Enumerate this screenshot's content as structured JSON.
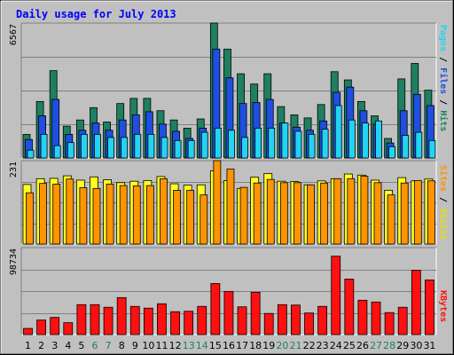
{
  "title": "Daily usage for July 2013",
  "chart_data": [
    {
      "type": "bar",
      "panel": "top",
      "ymax_label": "6567",
      "ylim": [
        0,
        6567
      ],
      "right_label": {
        "pages": "Pages",
        "files": "Files",
        "hits": "Hits",
        "sep": " / "
      },
      "colors": {
        "hits": "#1e8060",
        "files": "#1f4fe0",
        "pages": "#22d4f4"
      },
      "categories": [
        "1",
        "2",
        "3",
        "4",
        "5",
        "6",
        "7",
        "8",
        "9",
        "10",
        "11",
        "12",
        "13",
        "14",
        "15",
        "16",
        "17",
        "18",
        "19",
        "20",
        "21",
        "22",
        "23",
        "24",
        "25",
        "26",
        "27",
        "28",
        "29",
        "30",
        "31"
      ],
      "weekend_days": [
        "6",
        "7",
        "13",
        "14",
        "20",
        "21",
        "27",
        "28"
      ],
      "series": [
        {
          "name": "Hits",
          "values": [
            1150,
            2750,
            4250,
            1550,
            1850,
            2450,
            1750,
            2650,
            2900,
            2900,
            2300,
            1850,
            1450,
            1900,
            6567,
            5300,
            4100,
            3600,
            4100,
            2500,
            2100,
            1950,
            2600,
            4200,
            3800,
            2750,
            2050,
            950,
            3850,
            4600,
            3300
          ]
        },
        {
          "name": "Files",
          "values": [
            900,
            2050,
            2850,
            1150,
            1350,
            1700,
            1350,
            1850,
            2100,
            2250,
            1650,
            1300,
            950,
            1450,
            5300,
            3900,
            2650,
            2700,
            2850,
            1700,
            1500,
            1350,
            1800,
            3200,
            3450,
            2300,
            1650,
            730,
            2300,
            3100,
            2550
          ]
        },
        {
          "name": "Pages",
          "values": [
            380,
            1150,
            600,
            750,
            1150,
            1150,
            1000,
            1000,
            1150,
            1150,
            1000,
            850,
            850,
            1250,
            1450,
            1350,
            1000,
            1450,
            1450,
            1700,
            1300,
            1150,
            1400,
            2550,
            1850,
            1700,
            1800,
            550,
            1100,
            1250,
            850
          ]
        }
      ]
    },
    {
      "type": "bar",
      "panel": "middle",
      "ymax_label": "231",
      "ylim": [
        0,
        231
      ],
      "right_label": {
        "sites": "Sites",
        "visits": "Visits",
        "sep": " / "
      },
      "colors": {
        "visits": "#ffff20",
        "sites": "#ff9400"
      },
      "series": [
        {
          "name": "Visits",
          "values": [
            165,
            181,
            182,
            189,
            177,
            186,
            178,
            170,
            174,
            176,
            187,
            167,
            163,
            164,
            203,
            176,
            154,
            185,
            195,
            174,
            173,
            164,
            175,
            181,
            194,
            191,
            177,
            149,
            184,
            175,
            180
          ]
        },
        {
          "name": "Sites",
          "values": [
            142,
            168,
            166,
            180,
            156,
            154,
            166,
            162,
            161,
            162,
            181,
            149,
            149,
            136,
            231,
            208,
            157,
            169,
            179,
            170,
            170,
            164,
            169,
            181,
            181,
            188,
            170,
            136,
            169,
            176,
            175
          ]
        }
      ]
    },
    {
      "type": "bar",
      "panel": "bottom",
      "ymax_label": "98734",
      "ylim": [
        0,
        98734
      ],
      "right_label": {
        "kbytes": "KBytes"
      },
      "colors": {
        "kbytes": "#ff1010"
      },
      "series": [
        {
          "name": "KBytes",
          "values": [
            7000,
            16500,
            19500,
            13500,
            34000,
            34000,
            31000,
            42000,
            32000,
            30000,
            35000,
            26000,
            26500,
            32000,
            58000,
            49000,
            31500,
            48000,
            24000,
            34000,
            33500,
            24500,
            32000,
            89000,
            63000,
            39000,
            37000,
            25000,
            31000,
            73000,
            62000
          ]
        }
      ]
    }
  ]
}
